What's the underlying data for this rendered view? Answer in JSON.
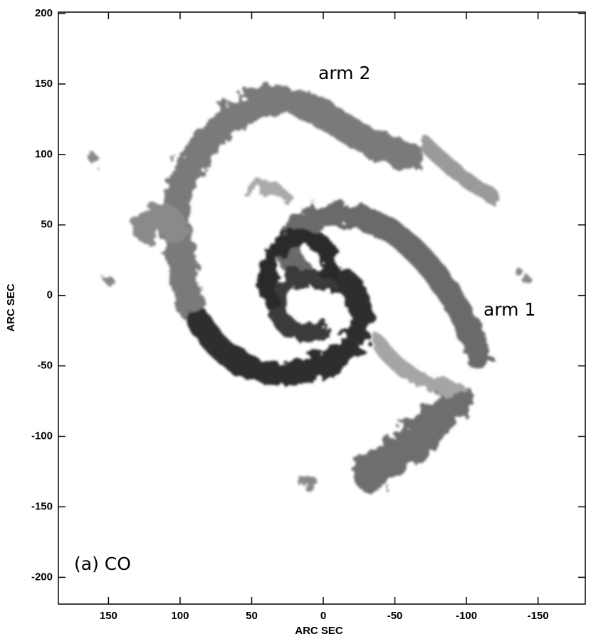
{
  "chart_data": {
    "type": "image",
    "xlabel": "ARC SEC",
    "ylabel": "ARC SEC",
    "annotations": [
      "arm 2",
      "arm 1",
      "(a) CO"
    ],
    "xlim": [
      185,
      -183
    ],
    "ylim": [
      -219,
      201
    ],
    "xticks": [
      150,
      100,
      50,
      0,
      -50,
      -100,
      -150
    ],
    "yticks": [
      -200,
      -150,
      -100,
      -50,
      0,
      50,
      100,
      150,
      200
    ]
  }
}
